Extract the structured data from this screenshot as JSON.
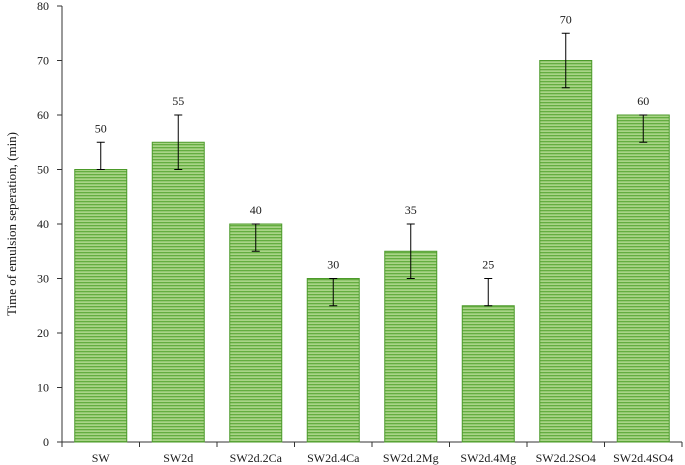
{
  "chart_data": {
    "type": "bar",
    "title": "",
    "xlabel": "",
    "ylabel": "Time of emulsion seperation, (min)",
    "categories": [
      "SW",
      "SW2d",
      "SW2d.2Ca",
      "SW2d.4Ca",
      "SW2d.2Mg",
      "SW2d.4Mg",
      "SW2d.2SO4",
      "SW2d.4SO4"
    ],
    "values": [
      50,
      55,
      40,
      30,
      35,
      25,
      70,
      60
    ],
    "error_low": [
      50,
      50,
      35,
      25,
      30,
      25,
      65,
      55
    ],
    "error_high": [
      55,
      60,
      40,
      30,
      40,
      30,
      75,
      60
    ],
    "data_labels": [
      "50",
      "55",
      "40",
      "30",
      "35",
      "25",
      "70",
      "60"
    ],
    "ylim": [
      0,
      80
    ],
    "yticks": [
      0,
      10,
      20,
      30,
      40,
      50,
      60,
      70,
      80
    ],
    "grid": false,
    "legend": "none",
    "bar_fill": "#9ccc6f",
    "bar_stripe": "#5fa83a",
    "bar_edge": "#4c9a2a"
  }
}
